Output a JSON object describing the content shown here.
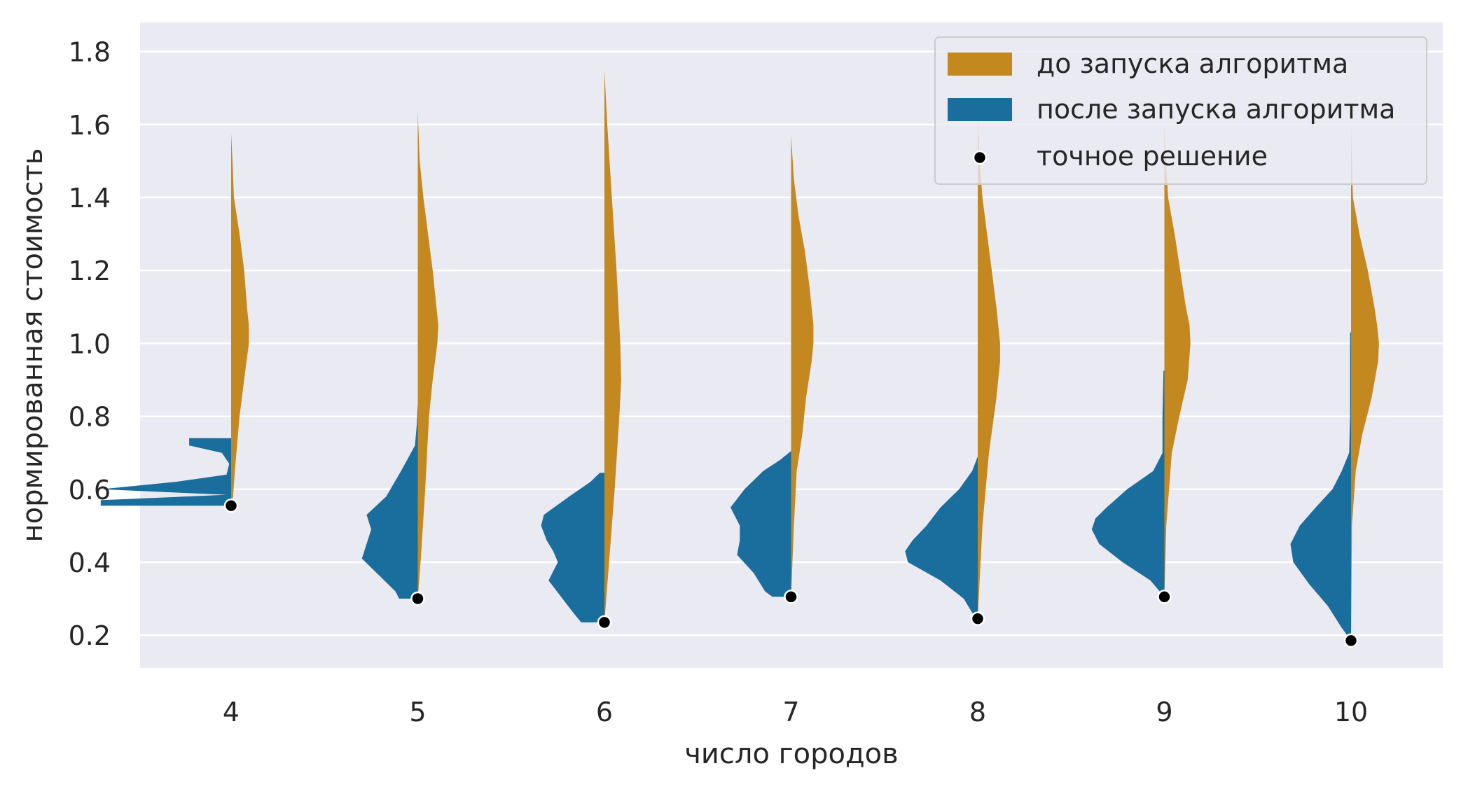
{
  "chart_data": {
    "type": "violin",
    "xlabel": "число городов",
    "ylabel": "нормированная стоимость",
    "categories": [
      "4",
      "5",
      "6",
      "7",
      "8",
      "9",
      "10"
    ],
    "ylim": [
      0.11,
      1.88
    ],
    "yticks": [
      "0.2",
      "0.4",
      "0.6",
      "0.8",
      "1.0",
      "1.2",
      "1.4",
      "1.6",
      "1.8"
    ],
    "grid": true,
    "legend_position": "top-right",
    "legend": [
      {
        "label": "до запуска алгоритма",
        "kind": "patch",
        "color": "#c38820"
      },
      {
        "label": "после запуска алгоритма",
        "kind": "patch",
        "color": "#1a6e9d"
      },
      {
        "label": "точное решение",
        "kind": "point",
        "color": "#000000"
      }
    ],
    "series": [
      {
        "name": "до запуска алгоритма",
        "side": "right",
        "color": "#c38820",
        "violins": [
          {
            "category": "4",
            "y_min": 0.555,
            "y_max": 1.575,
            "profile": [
              [
                0.555,
                0.01
              ],
              [
                0.58,
                0.02
              ],
              [
                0.65,
                0.04
              ],
              [
                0.8,
                0.09
              ],
              [
                0.9,
                0.14
              ],
              [
                1.0,
                0.19
              ],
              [
                1.05,
                0.19
              ],
              [
                1.1,
                0.17
              ],
              [
                1.2,
                0.14
              ],
              [
                1.3,
                0.09
              ],
              [
                1.4,
                0.03
              ],
              [
                1.5,
                0.015
              ],
              [
                1.575,
                0.0
              ]
            ]
          },
          {
            "category": "5",
            "y_min": 0.3,
            "y_max": 1.635,
            "profile": [
              [
                0.3,
                0.0
              ],
              [
                0.4,
                0.03
              ],
              [
                0.6,
                0.08
              ],
              [
                0.8,
                0.12
              ],
              [
                0.9,
                0.16
              ],
              [
                1.0,
                0.21
              ],
              [
                1.05,
                0.22
              ],
              [
                1.1,
                0.2
              ],
              [
                1.2,
                0.16
              ],
              [
                1.3,
                0.11
              ],
              [
                1.4,
                0.06
              ],
              [
                1.5,
                0.02
              ],
              [
                1.635,
                0.0
              ]
            ]
          },
          {
            "category": "6",
            "y_min": 0.235,
            "y_max": 1.75,
            "profile": [
              [
                0.235,
                0.0
              ],
              [
                0.4,
                0.05
              ],
              [
                0.6,
                0.11
              ],
              [
                0.8,
                0.16
              ],
              [
                0.9,
                0.18
              ],
              [
                1.0,
                0.17
              ],
              [
                1.2,
                0.13
              ],
              [
                1.4,
                0.08
              ],
              [
                1.6,
                0.03
              ],
              [
                1.75,
                0.0
              ]
            ]
          },
          {
            "category": "7",
            "y_min": 0.305,
            "y_max": 1.57,
            "profile": [
              [
                0.305,
                0.0
              ],
              [
                0.5,
                0.03
              ],
              [
                0.65,
                0.06
              ],
              [
                0.75,
                0.12
              ],
              [
                0.85,
                0.16
              ],
              [
                0.95,
                0.22
              ],
              [
                1.0,
                0.24
              ],
              [
                1.05,
                0.24
              ],
              [
                1.15,
                0.2
              ],
              [
                1.25,
                0.15
              ],
              [
                1.35,
                0.08
              ],
              [
                1.45,
                0.03
              ],
              [
                1.57,
                0.0
              ]
            ]
          },
          {
            "category": "8",
            "y_min": 0.245,
            "y_max": 1.62,
            "profile": [
              [
                0.245,
                0.0
              ],
              [
                0.5,
                0.05
              ],
              [
                0.7,
                0.12
              ],
              [
                0.85,
                0.2
              ],
              [
                0.95,
                0.24
              ],
              [
                1.0,
                0.24
              ],
              [
                1.1,
                0.2
              ],
              [
                1.2,
                0.15
              ],
              [
                1.3,
                0.1
              ],
              [
                1.4,
                0.05
              ],
              [
                1.5,
                0.02
              ],
              [
                1.62,
                0.0
              ]
            ]
          },
          {
            "category": "9",
            "y_min": 0.305,
            "y_max": 1.6,
            "profile": [
              [
                0.305,
                0.0
              ],
              [
                0.5,
                0.02
              ],
              [
                0.7,
                0.08
              ],
              [
                0.8,
                0.16
              ],
              [
                0.9,
                0.25
              ],
              [
                1.0,
                0.28
              ],
              [
                1.05,
                0.27
              ],
              [
                1.1,
                0.23
              ],
              [
                1.2,
                0.17
              ],
              [
                1.3,
                0.11
              ],
              [
                1.4,
                0.04
              ],
              [
                1.5,
                0.015
              ],
              [
                1.6,
                0.0
              ]
            ]
          },
          {
            "category": "10",
            "y_min": 0.185,
            "y_max": 1.6,
            "profile": [
              [
                0.185,
                0.0
              ],
              [
                0.5,
                0.01
              ],
              [
                0.65,
                0.05
              ],
              [
                0.75,
                0.12
              ],
              [
                0.85,
                0.22
              ],
              [
                0.95,
                0.29
              ],
              [
                1.0,
                0.3
              ],
              [
                1.05,
                0.28
              ],
              [
                1.1,
                0.25
              ],
              [
                1.2,
                0.18
              ],
              [
                1.3,
                0.09
              ],
              [
                1.4,
                0.02
              ],
              [
                1.5,
                0.01
              ],
              [
                1.6,
                0.0
              ]
            ]
          }
        ]
      },
      {
        "name": "после запуска алгоритма",
        "side": "left",
        "color": "#1a6e9d",
        "violins": [
          {
            "category": "4",
            "y_min": 0.555,
            "y_max": 0.74,
            "profile": [
              [
                0.555,
                1.4
              ],
              [
                0.57,
                1.4
              ],
              [
                0.585,
                0.05
              ],
              [
                0.6,
                1.4
              ],
              [
                0.62,
                0.6
              ],
              [
                0.64,
                0.05
              ],
              [
                0.67,
                0.02
              ],
              [
                0.7,
                0.1
              ],
              [
                0.72,
                0.45
              ],
              [
                0.74,
                0.45
              ]
            ]
          },
          {
            "category": "5",
            "y_min": 0.3,
            "y_max": 0.835,
            "profile": [
              [
                0.3,
                0.2
              ],
              [
                0.32,
                0.24
              ],
              [
                0.36,
                0.4
              ],
              [
                0.41,
                0.6
              ],
              [
                0.45,
                0.55
              ],
              [
                0.49,
                0.5
              ],
              [
                0.53,
                0.55
              ],
              [
                0.58,
                0.34
              ],
              [
                0.65,
                0.18
              ],
              [
                0.72,
                0.03
              ],
              [
                0.78,
                0.01
              ],
              [
                0.835,
                0.0
              ]
            ]
          },
          {
            "category": "6",
            "y_min": 0.235,
            "y_max": 0.645,
            "profile": [
              [
                0.235,
                0.25
              ],
              [
                0.26,
                0.33
              ],
              [
                0.3,
                0.45
              ],
              [
                0.35,
                0.6
              ],
              [
                0.4,
                0.5
              ],
              [
                0.43,
                0.55
              ],
              [
                0.46,
                0.62
              ],
              [
                0.5,
                0.68
              ],
              [
                0.53,
                0.65
              ],
              [
                0.58,
                0.38
              ],
              [
                0.62,
                0.15
              ],
              [
                0.645,
                0.05
              ]
            ]
          },
          {
            "category": "7",
            "y_min": 0.305,
            "y_max": 0.705,
            "profile": [
              [
                0.305,
                0.2
              ],
              [
                0.32,
                0.28
              ],
              [
                0.37,
                0.4
              ],
              [
                0.42,
                0.58
              ],
              [
                0.46,
                0.55
              ],
              [
                0.5,
                0.55
              ],
              [
                0.55,
                0.65
              ],
              [
                0.6,
                0.5
              ],
              [
                0.65,
                0.3
              ],
              [
                0.68,
                0.12
              ],
              [
                0.705,
                0.0
              ]
            ]
          },
          {
            "category": "8",
            "y_min": 0.245,
            "y_max": 0.69,
            "profile": [
              [
                0.245,
                0.02
              ],
              [
                0.3,
                0.15
              ],
              [
                0.35,
                0.4
              ],
              [
                0.4,
                0.75
              ],
              [
                0.43,
                0.78
              ],
              [
                0.46,
                0.7
              ],
              [
                0.5,
                0.55
              ],
              [
                0.55,
                0.4
              ],
              [
                0.6,
                0.2
              ],
              [
                0.65,
                0.06
              ],
              [
                0.69,
                0.0
              ]
            ]
          },
          {
            "category": "9",
            "y_min": 0.305,
            "y_max": 0.925,
            "profile": [
              [
                0.305,
                0.0
              ],
              [
                0.35,
                0.15
              ],
              [
                0.4,
                0.45
              ],
              [
                0.45,
                0.7
              ],
              [
                0.49,
                0.78
              ],
              [
                0.52,
                0.74
              ],
              [
                0.55,
                0.62
              ],
              [
                0.6,
                0.4
              ],
              [
                0.65,
                0.12
              ],
              [
                0.7,
                0.02
              ],
              [
                0.8,
                0.02
              ],
              [
                0.925,
                0.01
              ]
            ]
          },
          {
            "category": "10",
            "y_min": 0.185,
            "y_max": 1.03,
            "profile": [
              [
                0.185,
                0.0
              ],
              [
                0.22,
                0.1
              ],
              [
                0.28,
                0.25
              ],
              [
                0.34,
                0.45
              ],
              [
                0.4,
                0.62
              ],
              [
                0.45,
                0.65
              ],
              [
                0.5,
                0.55
              ],
              [
                0.55,
                0.38
              ],
              [
                0.6,
                0.2
              ],
              [
                0.65,
                0.1
              ],
              [
                0.7,
                0.02
              ],
              [
                0.8,
                0.01
              ],
              [
                1.0,
                0.01
              ],
              [
                1.03,
                0.01
              ]
            ]
          }
        ]
      },
      {
        "name": "точное решение",
        "type": "scatter",
        "color": "#000000",
        "points": [
          {
            "category": "4",
            "y": 0.555
          },
          {
            "category": "5",
            "y": 0.3
          },
          {
            "category": "6",
            "y": 0.235
          },
          {
            "category": "7",
            "y": 0.305
          },
          {
            "category": "8",
            "y": 0.245
          },
          {
            "category": "9",
            "y": 0.305
          },
          {
            "category": "10",
            "y": 0.185
          }
        ]
      }
    ]
  }
}
